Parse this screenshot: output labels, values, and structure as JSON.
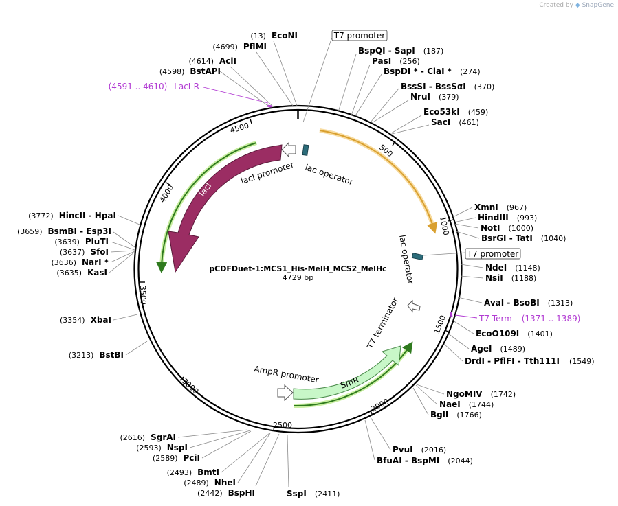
{
  "credit": {
    "prefix": "Created by",
    "brand": "SnapGene",
    "icon": "snapgene-logo-icon"
  },
  "plasmid": {
    "name": "pCDFDuet-1:MCS1_His-MelH_MCS2_MelHc",
    "length_label": "4729 bp",
    "length": 4729
  },
  "colors": {
    "lacI": "#9b2d63",
    "SmR": "#c8f7c8",
    "orange_arrow": "#f2b84b",
    "green_highlight": "#a8e27a",
    "operator": "#2c6c7a",
    "misc_purple": "#b23cd3"
  },
  "ring_ticks": [
    {
      "pos": 500,
      "label": "500"
    },
    {
      "pos": 1000,
      "label": "1000"
    },
    {
      "pos": 1500,
      "label": "1500"
    },
    {
      "pos": 2000,
      "label": "2000"
    },
    {
      "pos": 2500,
      "label": "2500"
    },
    {
      "pos": 3000,
      "label": "3000"
    },
    {
      "pos": 3500,
      "label": "3500"
    },
    {
      "pos": 4000,
      "label": "4000"
    },
    {
      "pos": 4500,
      "label": "4500"
    }
  ],
  "features": {
    "lacI": {
      "label": "lacI",
      "start": 3400,
      "end": 4485
    },
    "lacI_promoter": {
      "label": "lacI promoter"
    },
    "lac_operator_top": {
      "label": "lac operator"
    },
    "lac_operator_right": {
      "label": "lac operator"
    },
    "SmR": {
      "label": "SmR"
    },
    "AmpR_promoter": {
      "label": "AmpR promoter"
    },
    "T7_terminator": {
      "label": "T7 terminator"
    }
  },
  "boxed_labels": {
    "top": {
      "label": "T7 promoter"
    },
    "right": {
      "label": "T7 promoter"
    }
  },
  "misc_labels": [
    {
      "range": "(4591 .. 4610)",
      "name": "LacI-R"
    },
    {
      "range": "T7 Term",
      "name": "(1371 .. 1389)"
    }
  ],
  "sites_left": [
    {
      "num": "(13)",
      "name": "EcoNI"
    },
    {
      "num": "(4699)",
      "name": "PflMI"
    },
    {
      "num": "(4614)",
      "name": "AclI"
    },
    {
      "num": "(4598)",
      "name": "BstAPI"
    },
    {
      "num": "(3772)",
      "name": "HincII - HpaI"
    },
    {
      "num": "(3659)",
      "name": "BsmBI - Esp3I"
    },
    {
      "num": "(3639)",
      "name": "PluTI"
    },
    {
      "num": "(3637)",
      "name": "SfoI"
    },
    {
      "num": "(3636)",
      "name": "NarI *"
    },
    {
      "num": "(3635)",
      "name": "KasI"
    },
    {
      "num": "(3354)",
      "name": "XbaI"
    },
    {
      "num": "(3213)",
      "name": "BstBI"
    },
    {
      "num": "(2616)",
      "name": "SgrAI"
    },
    {
      "num": "(2593)",
      "name": "NspI"
    },
    {
      "num": "(2589)",
      "name": "PciI"
    },
    {
      "num": "(2493)",
      "name": "BmtI"
    },
    {
      "num": "(2489)",
      "name": "NheI"
    },
    {
      "num": "(2442)",
      "name": "BspHI"
    }
  ],
  "sites_right": [
    {
      "name": "BspQI - SapI",
      "num": "(187)"
    },
    {
      "name": "PasI",
      "num": "(256)"
    },
    {
      "name": "BspDI * - ClaI *",
      "num": "(274)"
    },
    {
      "name": "BssSI - BssSαI",
      "num": "(370)"
    },
    {
      "name": "NruI",
      "num": "(379)"
    },
    {
      "name": "Eco53kI",
      "num": "(459)"
    },
    {
      "name": "SacI",
      "num": "(461)"
    },
    {
      "name": "XmnI",
      "num": "(967)"
    },
    {
      "name": "HindIII",
      "num": "(993)"
    },
    {
      "name": "NotI",
      "num": "(1000)"
    },
    {
      "name": "BsrGI - TatI",
      "num": "(1040)"
    },
    {
      "name": "NdeI",
      "num": "(1148)"
    },
    {
      "name": "NsiI",
      "num": "(1188)"
    },
    {
      "name": "AvaI - BsoBI",
      "num": "(1313)"
    },
    {
      "name": "EcoO109I",
      "num": "(1401)"
    },
    {
      "name": "AgeI",
      "num": "(1489)"
    },
    {
      "name": "DrdI - PflFI - Tth111I",
      "num": "(1549)"
    },
    {
      "name": "NgoMIV",
      "num": "(1742)"
    },
    {
      "name": "NaeI",
      "num": "(1744)"
    },
    {
      "name": "BglI",
      "num": "(1766)"
    },
    {
      "name": "PvuI",
      "num": "(2016)"
    },
    {
      "name": "BfuAI - BspMI",
      "num": "(2044)"
    },
    {
      "name": "SspI",
      "num": "(2411)"
    }
  ]
}
